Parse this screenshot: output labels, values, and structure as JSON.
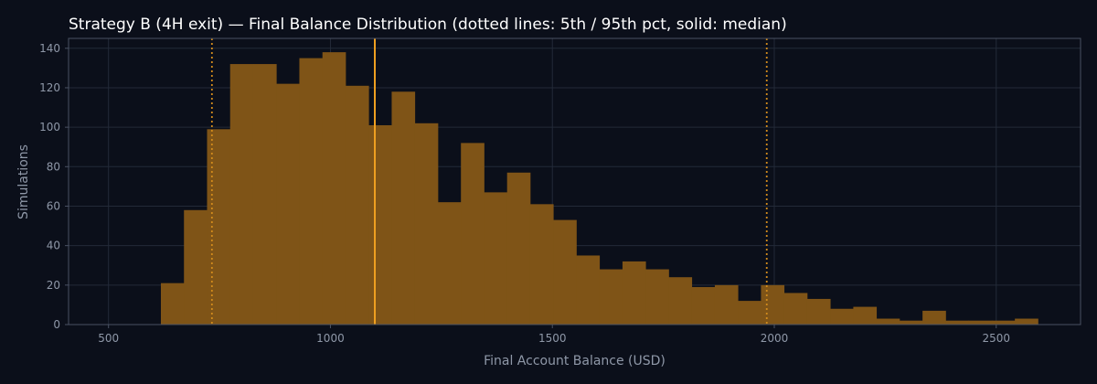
{
  "chart_data": {
    "type": "bar",
    "title": "Strategy B (4H exit) — Final Balance Distribution (dotted lines: 5th / 95th pct, solid: median)",
    "xlabel": "Final Account Balance (USD)",
    "ylabel": "Simulations",
    "xlim": [
      410,
      2690
    ],
    "ylim": [
      0,
      145
    ],
    "x_ticks": [
      500,
      1000,
      1500,
      2000,
      2500
    ],
    "y_ticks": [
      0,
      20,
      40,
      60,
      80,
      100,
      120,
      140
    ],
    "grid": true,
    "bin_edges": [
      618,
      670,
      722,
      774,
      826,
      878,
      930,
      982,
      1034,
      1086,
      1138,
      1190,
      1242,
      1294,
      1346,
      1398,
      1450,
      1502,
      1554,
      1606,
      1658,
      1710,
      1762,
      1814,
      1866,
      1918,
      1970,
      2022,
      2074,
      2126,
      2178,
      2230,
      2282,
      2334,
      2386,
      2438,
      2490,
      2542,
      2594
    ],
    "values": [
      21,
      58,
      99,
      132,
      132,
      122,
      135,
      138,
      121,
      101,
      118,
      102,
      62,
      92,
      67,
      77,
      61,
      53,
      35,
      28,
      32,
      28,
      24,
      19,
      20,
      12,
      20,
      16,
      13,
      8,
      9,
      3,
      2,
      7,
      2,
      2,
      2,
      3
    ],
    "percentile_lines": {
      "p5": 733,
      "median": 1100,
      "p95": 1983
    },
    "colors": {
      "background": "#0b0f1a",
      "bar": "#7f5417",
      "median_line": "#f0a020",
      "percentile_line": "#d08a1c",
      "grid": "#232a38",
      "axis": "#4a5263",
      "text": "#8f98a8",
      "title": "#ffffff"
    }
  }
}
